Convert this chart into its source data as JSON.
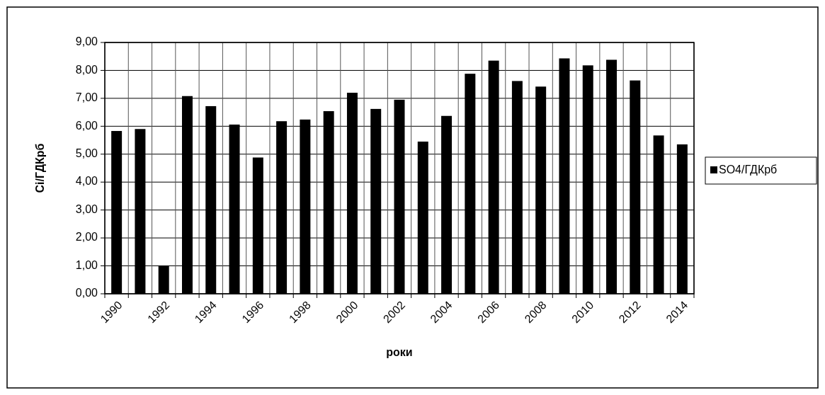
{
  "chart_data": {
    "type": "bar",
    "xlabel": "роки",
    "ylabel": "Ci/ГДКрб",
    "categories": [
      "1990",
      null,
      "1992",
      null,
      "1994",
      null,
      "1996",
      null,
      "1998",
      null,
      "2000",
      null,
      "2002",
      null,
      "2004",
      null,
      "2006",
      null,
      "2008",
      null,
      "2010",
      null,
      "2012",
      null,
      "2014"
    ],
    "series": [
      {
        "name": "SO4/ГДКрб",
        "color": "#000000",
        "values": [
          5.83,
          5.9,
          1.0,
          7.08,
          6.72,
          6.06,
          4.88,
          6.18,
          6.24,
          6.54,
          7.2,
          6.62,
          6.95,
          5.45,
          6.37,
          7.88,
          8.35,
          7.62,
          7.42,
          8.43,
          8.18,
          8.38,
          7.64,
          5.67,
          5.35
        ]
      }
    ],
    "ylim": [
      0,
      9
    ],
    "yticks": [
      {
        "value": 0,
        "label": "0,00"
      },
      {
        "value": 1,
        "label": "1,00"
      },
      {
        "value": 2,
        "label": "2,00"
      },
      {
        "value": 3,
        "label": "3,00"
      },
      {
        "value": 4,
        "label": "4,00"
      },
      {
        "value": 5,
        "label": "5,00"
      },
      {
        "value": 6,
        "label": "6,00"
      },
      {
        "value": 7,
        "label": "7,00"
      },
      {
        "value": 8,
        "label": "8,00"
      },
      {
        "value": 9,
        "label": "9,00"
      }
    ],
    "grid": true,
    "legend": "right"
  }
}
